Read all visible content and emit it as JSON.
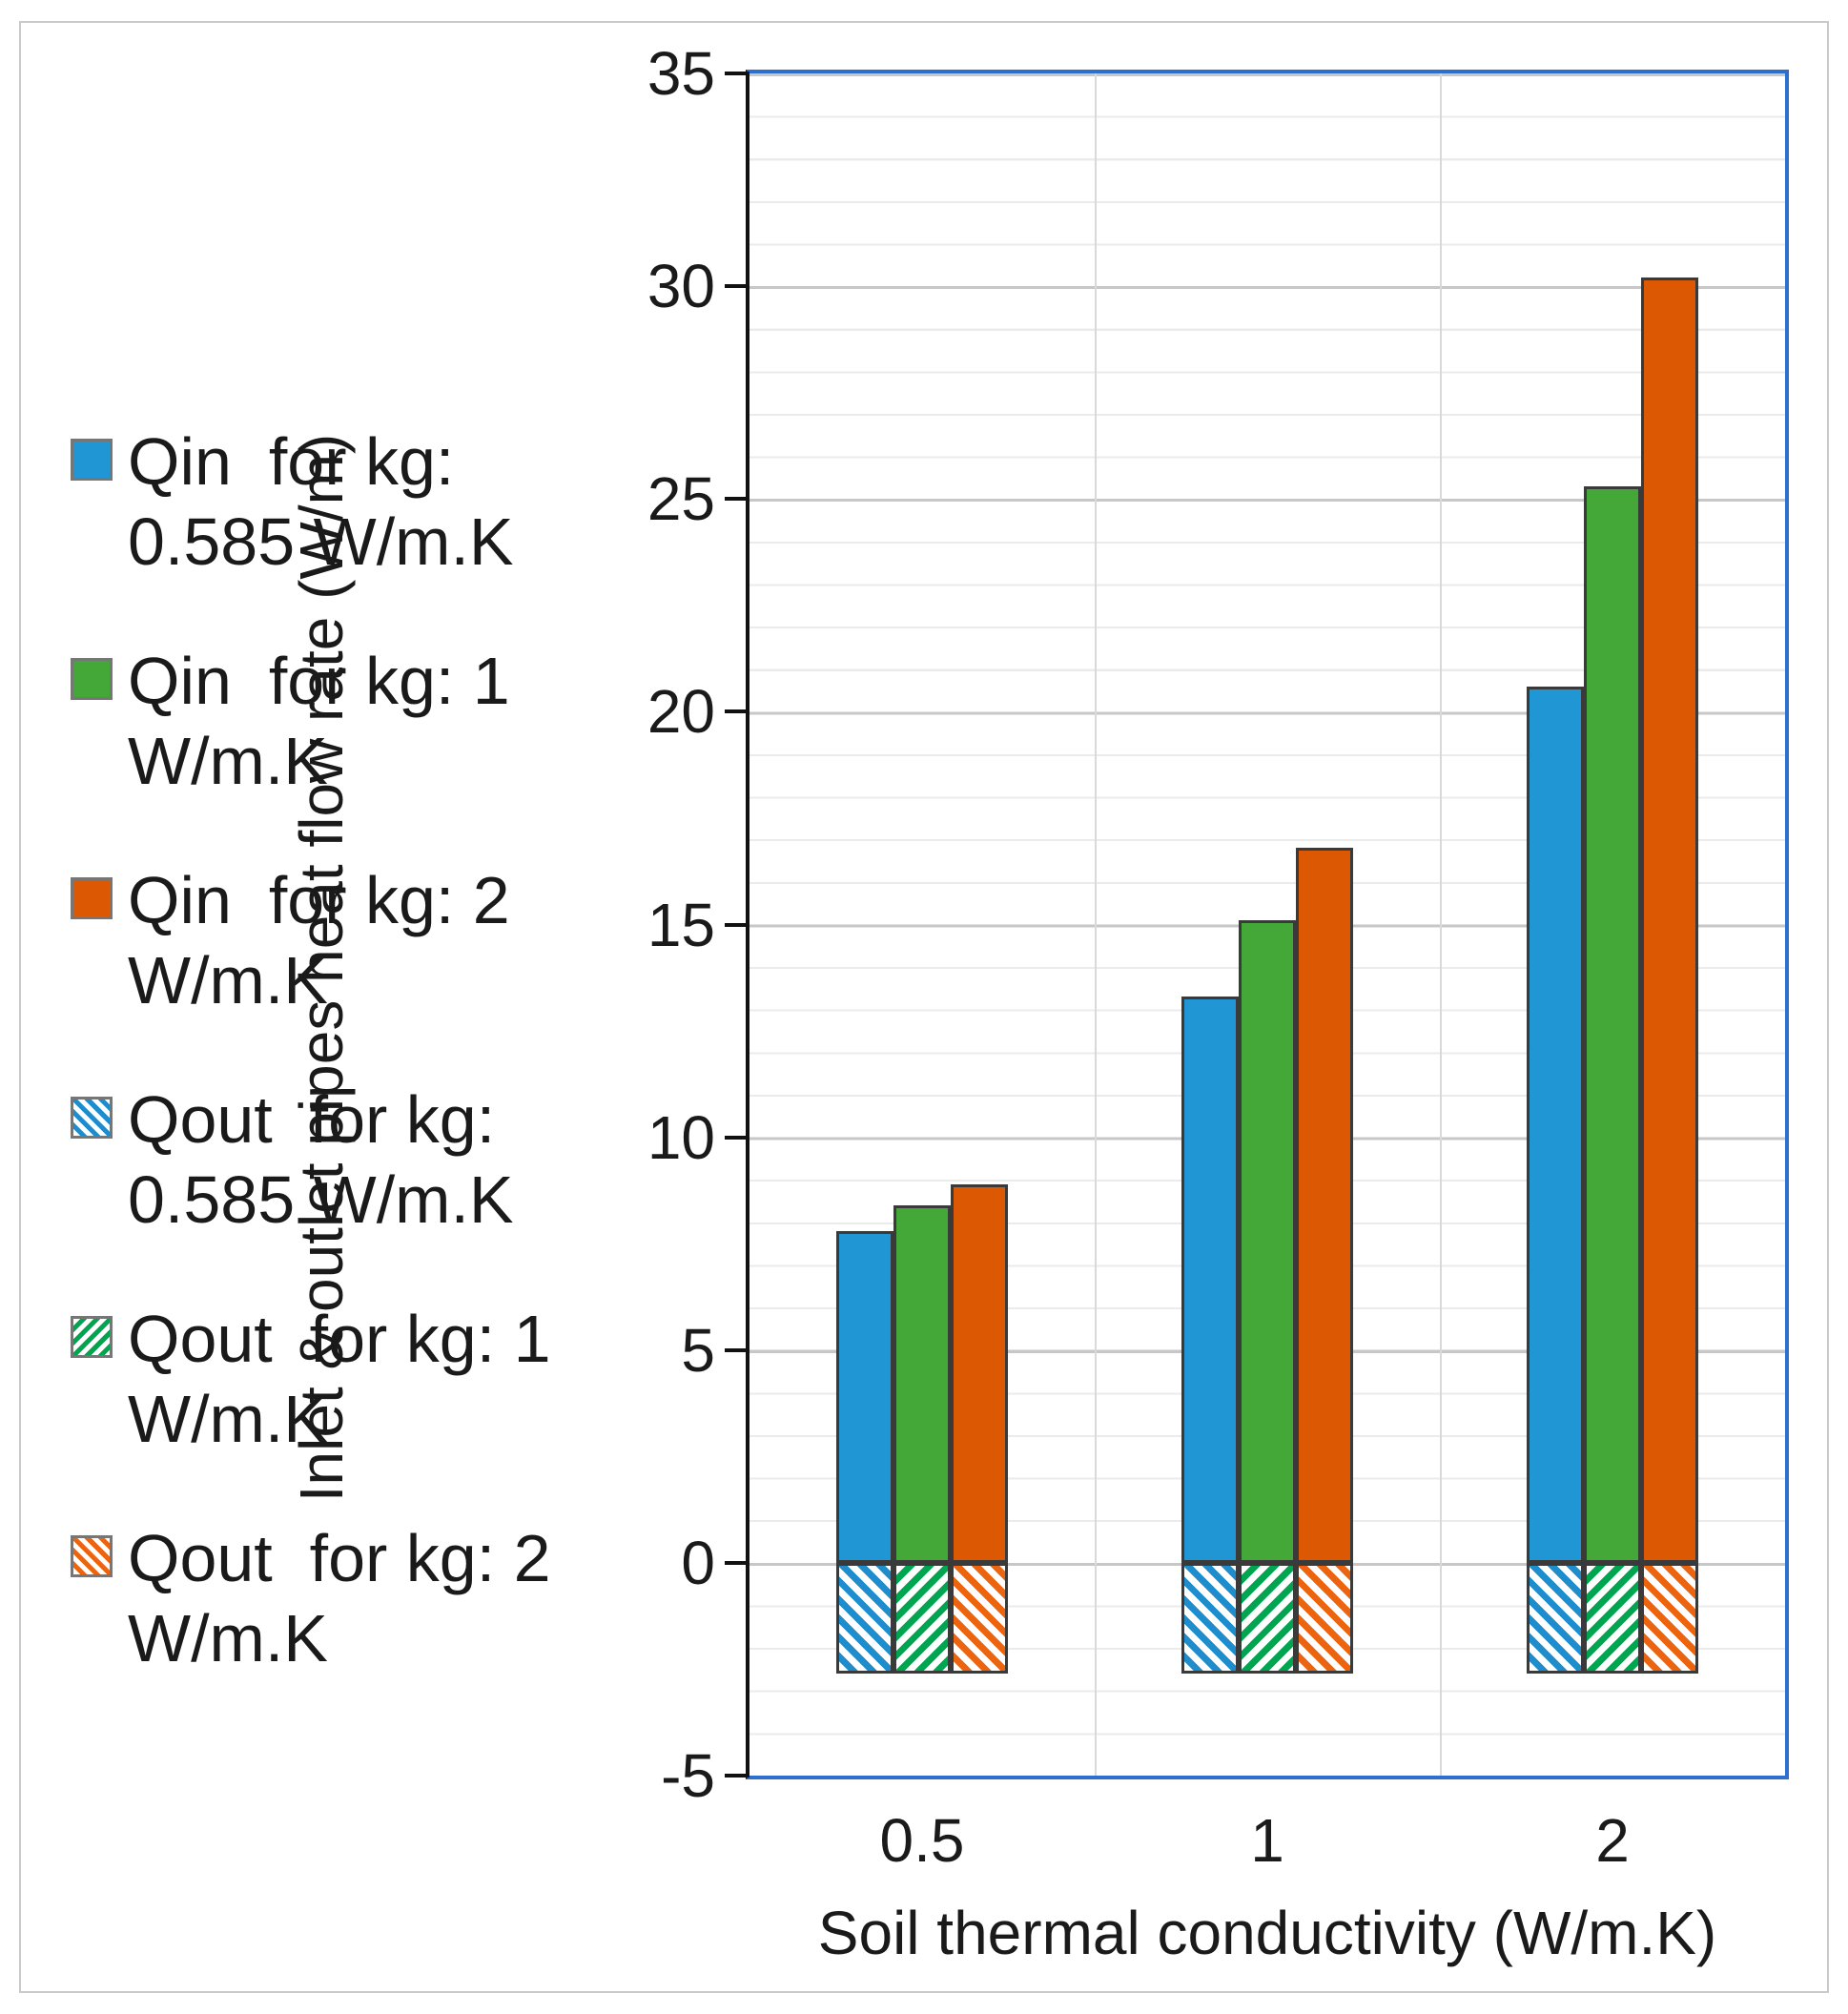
{
  "figure": {
    "x_axis_title": "Soil thermal conductivity (W/m.K)",
    "y_axis_title": "Inlet & outlet pipes heat flow rate (W/m)"
  },
  "legend": {
    "position": "left",
    "items": [
      {
        "line1": "Qin  for kg:",
        "line2": "0.585 W/m.K"
      },
      {
        "line1": "Qin  for kg: 1",
        "line2": "W/m.K"
      },
      {
        "line1": "Qin  for kg: 2",
        "line2": "W/m.K"
      },
      {
        "line1": "Qout  for kg:",
        "line2": "0.585 W/m.K"
      },
      {
        "line1": "Qout  for kg: 1",
        "line2": "W/m.K"
      },
      {
        "line1": "Qout  for kg: 2",
        "line2": "W/m.K"
      }
    ]
  },
  "chart_data": {
    "type": "bar",
    "categories": [
      "0.5",
      "1",
      "2"
    ],
    "series": [
      {
        "name": "Qin for kg: 0.585 W/m.K",
        "style": "solid",
        "color": "#2196d4",
        "values": [
          7.8,
          13.3,
          20.6
        ]
      },
      {
        "name": "Qin for kg: 1 W/m.K",
        "style": "solid",
        "color": "#43a838",
        "values": [
          8.4,
          15.1,
          25.3
        ]
      },
      {
        "name": "Qin for kg: 2 W/m.K",
        "style": "solid",
        "color": "#dd5803",
        "values": [
          8.9,
          16.8,
          30.2
        ]
      },
      {
        "name": "Qout for kg: 0.585 W/m.K",
        "style": "hatch",
        "hatch_angle": 45,
        "color": "#1f8ccc",
        "values": [
          -2.6,
          -2.6,
          -2.6
        ]
      },
      {
        "name": "Qout for kg: 1 W/m.K",
        "style": "hatch",
        "hatch_angle": 135,
        "color": "#00a550",
        "values": [
          -2.6,
          -2.6,
          -2.6
        ]
      },
      {
        "name": "Qout for kg: 2 W/m.K",
        "style": "hatch",
        "hatch_angle": 45,
        "color": "#ed6410",
        "values": [
          -2.6,
          -2.6,
          -2.6
        ]
      }
    ],
    "xlabel": "Soil thermal conductivity (W/m.K)",
    "ylabel": "Inlet & outlet pipes heat flow rate (W/m)",
    "ylim": [
      -5,
      35
    ],
    "yticks": [
      35,
      30,
      25,
      20,
      15,
      10,
      5,
      0,
      -5
    ],
    "grid": {
      "minor_step": 1,
      "major_step": 5,
      "vertical_category_separators": true
    },
    "legend_position": "left",
    "colors": {
      "frame_blue": "#2e6fce",
      "axis_black": "#111111",
      "major_grid": "#c7c7c7",
      "minor_grid": "#ebebeb",
      "figure_border": "#c9c9c9",
      "bar_outline": "#3a3a3a"
    }
  }
}
